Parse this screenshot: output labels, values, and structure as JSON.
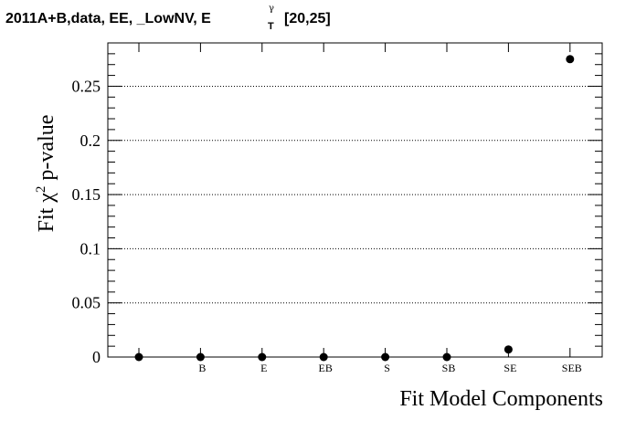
{
  "chart_data": {
    "type": "scatter",
    "title": {
      "main": "2011A+B,data, EE, _LowNV, E",
      "sup": "γ",
      "sub": "T",
      "range": "[20,25]"
    },
    "xlabel": "Fit Model Components",
    "ylabel": "Fit χ² p-value",
    "ylim": [
      0,
      0.29
    ],
    "yticks": [
      0,
      0.05,
      0.1,
      0.15,
      0.2,
      0.25
    ],
    "ytick_labels": [
      "0",
      "0.05",
      "0.1",
      "0.15",
      "0.2",
      "0.25"
    ],
    "grid": "horizontal-dotted",
    "categories": [
      "",
      "B",
      "E",
      "EB",
      "S",
      "SB",
      "SE",
      "SEB"
    ],
    "values": [
      0.0,
      0.0,
      0.0,
      0.0,
      0.0,
      0.0,
      0.007,
      0.275
    ]
  }
}
